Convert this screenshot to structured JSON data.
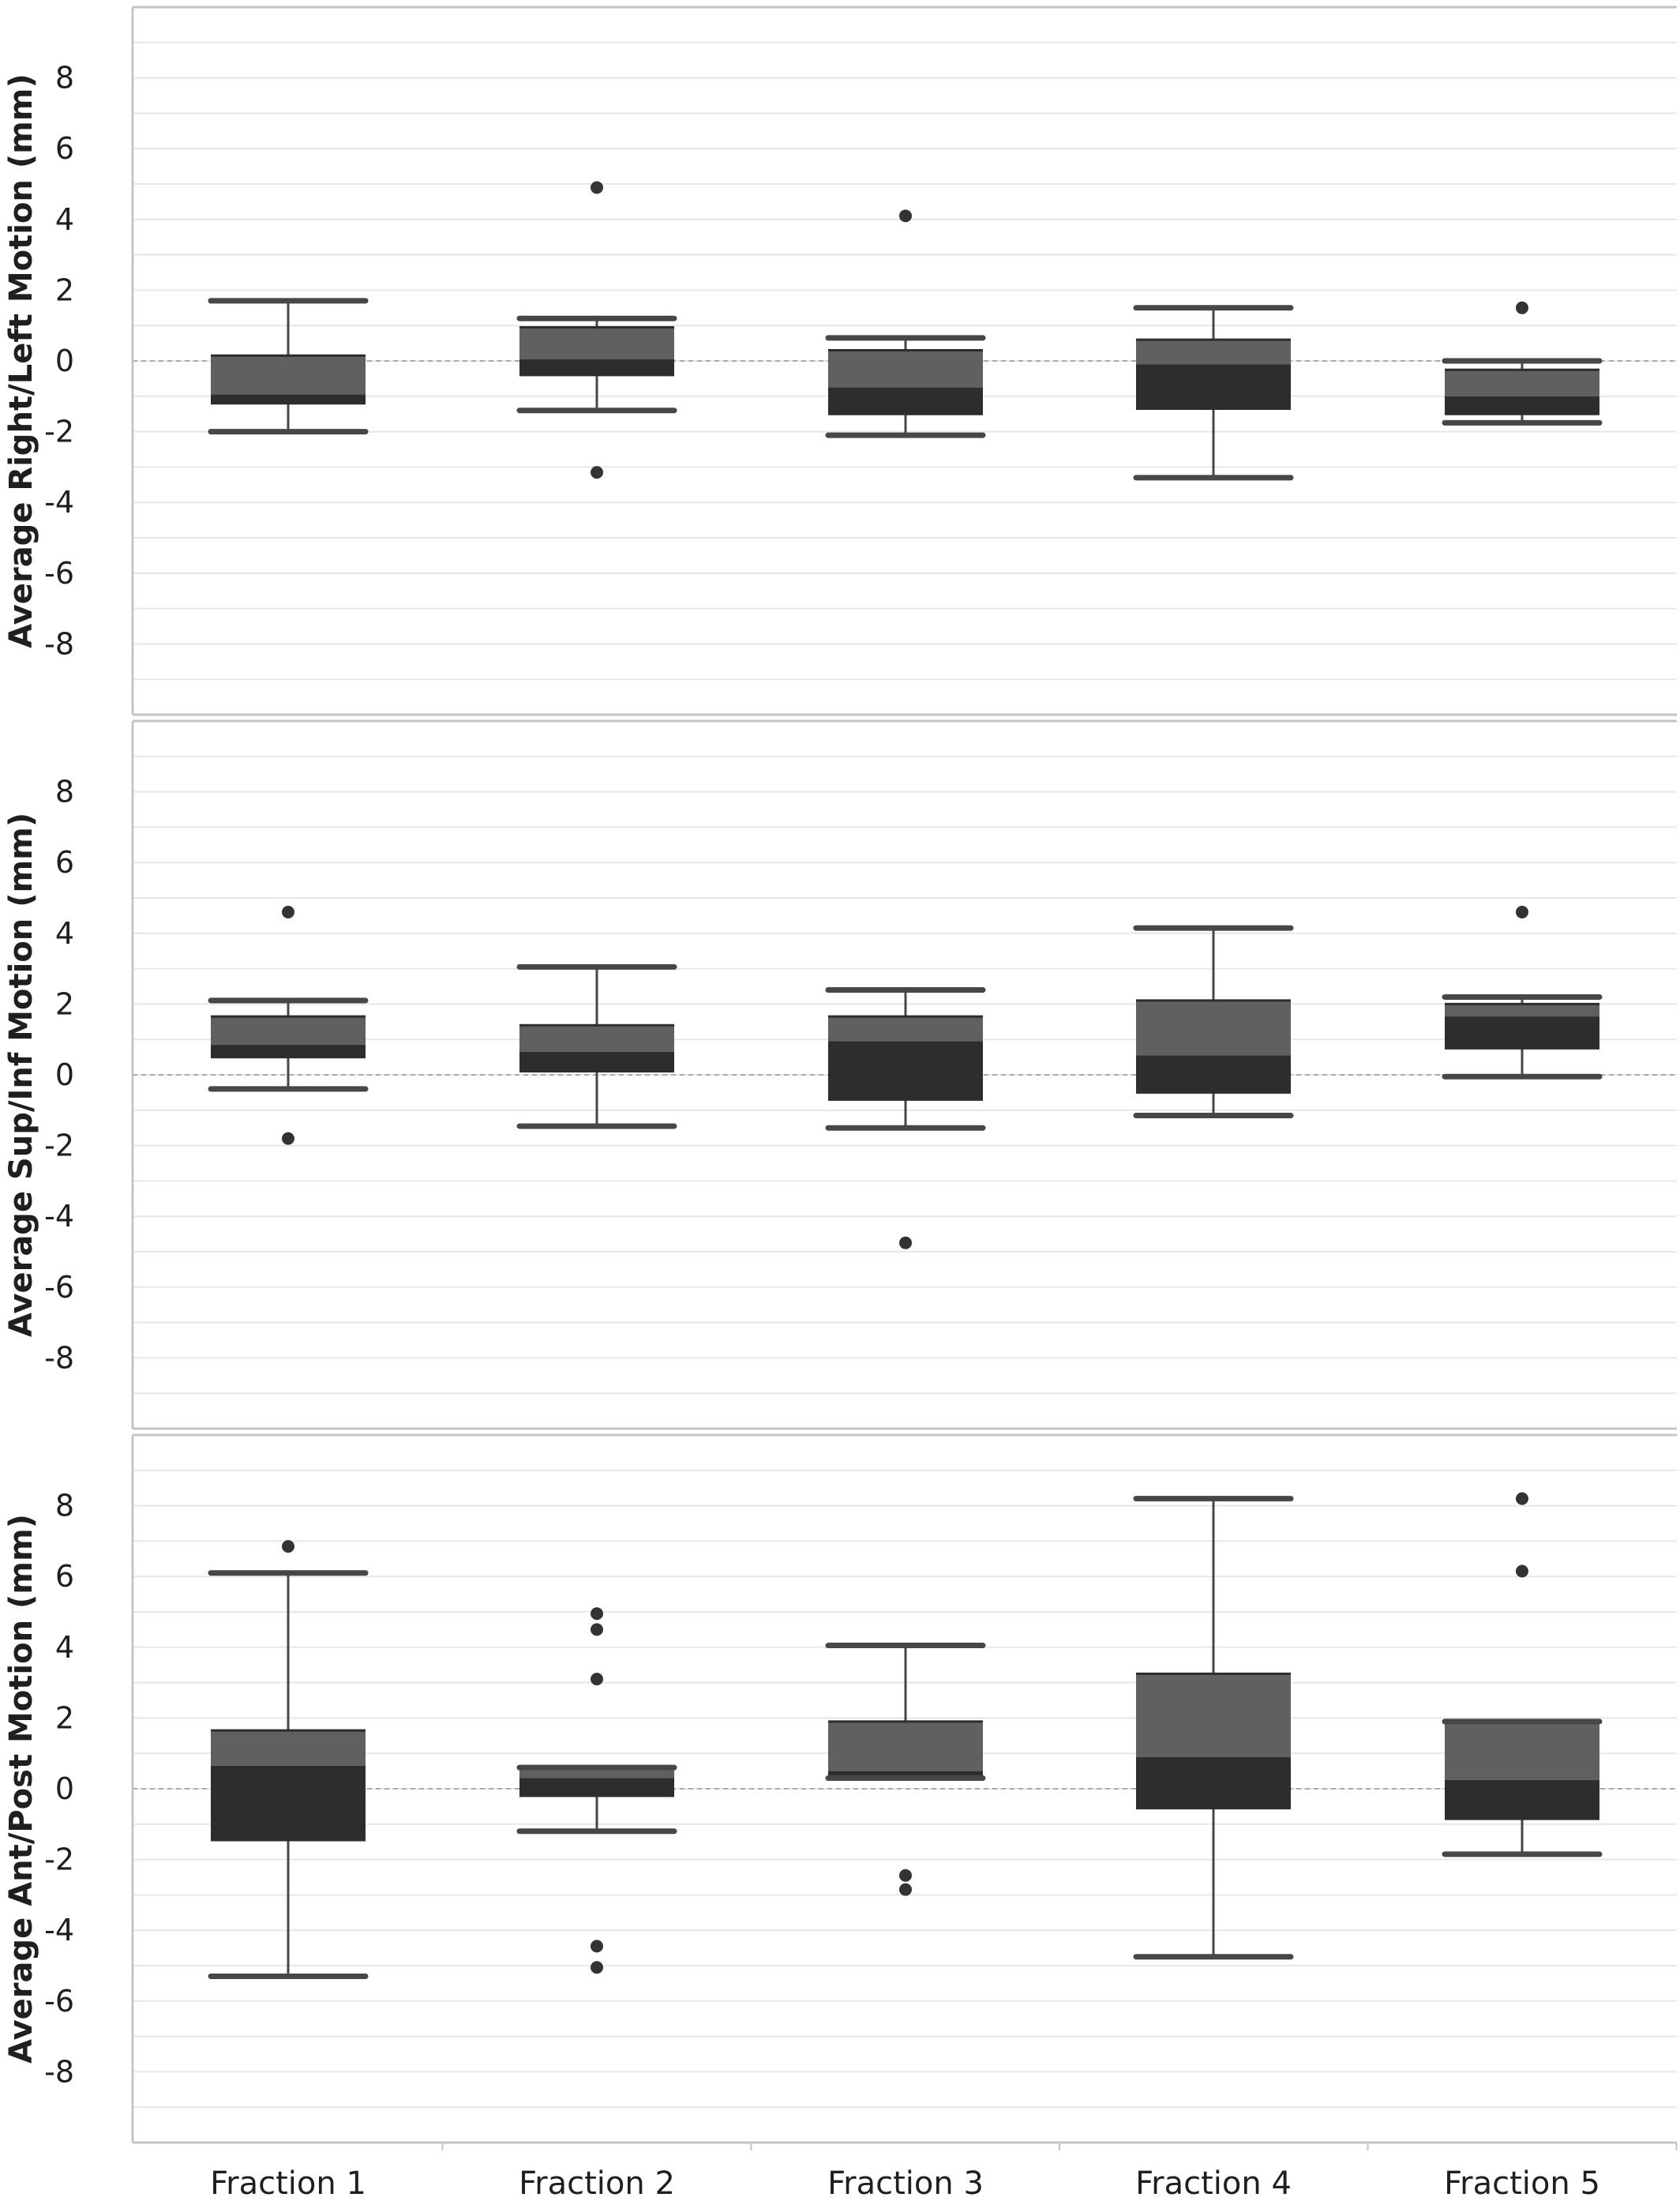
{
  "chart_data": [
    {
      "type": "box",
      "ylabel": "Average Right/Left Motion (mm)",
      "ylim": [
        -10,
        10
      ],
      "yticks": [
        8,
        6,
        4,
        2,
        0,
        -2,
        -4,
        -6,
        -8
      ],
      "ytick_labels": [
        "8",
        "6",
        "4",
        "2",
        "0",
        "-2",
        "-4",
        "-6",
        "-8"
      ],
      "categories": [
        "Fraction 1",
        "Fraction 2",
        "Fraction 3",
        "Fraction 4",
        "Fraction 5"
      ],
      "reference_line": 0,
      "grid": true,
      "boxes": [
        {
          "whisker_low": -2.0,
          "q1": -1.2,
          "median": -0.95,
          "q3": 0.15,
          "whisker_high": 1.7,
          "outliers": []
        },
        {
          "whisker_low": -1.4,
          "q1": -0.4,
          "median": 0.05,
          "q3": 0.95,
          "whisker_high": 1.2,
          "outliers": [
            4.9,
            -3.15
          ]
        },
        {
          "whisker_low": -2.1,
          "q1": -1.5,
          "median": -0.75,
          "q3": 0.3,
          "whisker_high": 0.65,
          "outliers": [
            4.1
          ]
        },
        {
          "whisker_low": -3.3,
          "q1": -1.35,
          "median": -0.1,
          "q3": 0.6,
          "whisker_high": 1.5,
          "outliers": []
        },
        {
          "whisker_low": -1.75,
          "q1": -1.5,
          "median": -1.0,
          "q3": -0.25,
          "whisker_high": 0.0,
          "outliers": [
            1.5
          ]
        }
      ]
    },
    {
      "type": "box",
      "ylabel": "Average Sup/Inf Motion (mm)",
      "ylim": [
        -10,
        10
      ],
      "yticks": [
        8,
        6,
        4,
        2,
        0,
        -2,
        -4,
        -6,
        -8
      ],
      "ytick_labels": [
        "8",
        "6",
        "4",
        "2",
        "0",
        "-2",
        "-4",
        "-6",
        "-8"
      ],
      "categories": [
        "Fraction 1",
        "Fraction 2",
        "Fraction 3",
        "Fraction 4",
        "Fraction 5"
      ],
      "reference_line": 0,
      "grid": true,
      "boxes": [
        {
          "whisker_low": -0.4,
          "q1": 0.5,
          "median": 0.85,
          "q3": 1.65,
          "whisker_high": 2.1,
          "outliers": [
            4.6,
            -1.8
          ]
        },
        {
          "whisker_low": -1.45,
          "q1": 0.1,
          "median": 0.65,
          "q3": 1.4,
          "whisker_high": 3.05,
          "outliers": []
        },
        {
          "whisker_low": -1.5,
          "q1": -0.7,
          "median": 0.95,
          "q3": 1.65,
          "whisker_high": 2.4,
          "outliers": [
            -4.75
          ]
        },
        {
          "whisker_low": -1.15,
          "q1": -0.5,
          "median": 0.55,
          "q3": 2.1,
          "whisker_high": 4.15,
          "outliers": []
        },
        {
          "whisker_low": -0.05,
          "q1": 0.75,
          "median": 1.65,
          "q3": 2.0,
          "whisker_high": 2.2,
          "outliers": [
            4.6
          ]
        }
      ]
    },
    {
      "type": "box",
      "ylabel": "Average Ant/Post Motion (mm)",
      "ylim": [
        -10,
        10
      ],
      "yticks": [
        8,
        6,
        4,
        2,
        0,
        -2,
        -4,
        -6,
        -8
      ],
      "ytick_labels": [
        "8",
        "6",
        "4",
        "2",
        "0",
        "-2",
        "-4",
        "-6",
        "-8"
      ],
      "categories": [
        "Fraction 1",
        "Fraction 2",
        "Fraction 3",
        "Fraction 4",
        "Fraction 5"
      ],
      "reference_line": 0,
      "grid": true,
      "boxes": [
        {
          "whisker_low": -5.3,
          "q1": -1.45,
          "median": 0.65,
          "q3": 1.65,
          "whisker_high": 6.1,
          "outliers": [
            6.85
          ]
        },
        {
          "whisker_low": -1.2,
          "q1": -0.2,
          "median": 0.3,
          "q3": 0.6,
          "whisker_high": 0.6,
          "outliers": [
            4.95,
            4.5,
            3.1,
            -4.45,
            -5.05
          ]
        },
        {
          "whisker_low": 0.3,
          "q1": 0.3,
          "median": 0.5,
          "q3": 1.9,
          "whisker_high": 4.05,
          "outliers": [
            -2.45,
            -2.85
          ]
        },
        {
          "whisker_low": -4.75,
          "q1": -0.55,
          "median": 0.9,
          "q3": 3.25,
          "whisker_high": 8.2,
          "outliers": []
        },
        {
          "whisker_low": -1.85,
          "q1": -0.85,
          "median": 0.25,
          "q3": 1.9,
          "whisker_high": 1.9,
          "outliers": [
            8.2,
            6.15
          ]
        }
      ]
    }
  ],
  "colors": {
    "upper_box": "#606060",
    "lower_box": "#2d2d2d",
    "whisker": "#474747",
    "outlier": "#333333",
    "grid": "#e7e7e7",
    "reference": "#a9a9a9",
    "frame": "#c4c4c4",
    "text": "#1f1f1f"
  }
}
